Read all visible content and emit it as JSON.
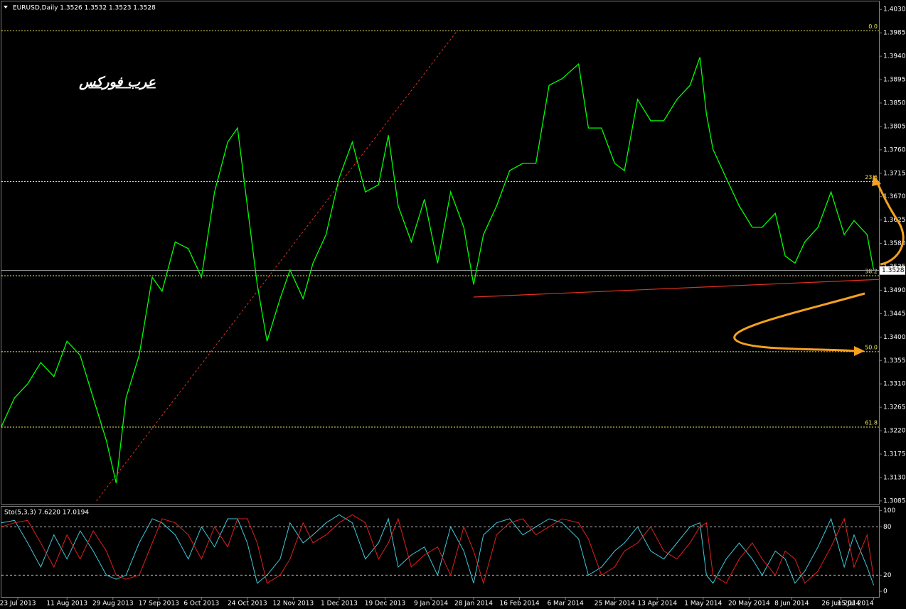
{
  "chart_data": [
    {
      "type": "line",
      "title": "EURUSD,Daily  1.3526 1.3532 1.3523 1.3528",
      "annotation": "عرب فوركس",
      "color": "#00ff00",
      "x": [
        0,
        4,
        8,
        12,
        16,
        20,
        24,
        28,
        32,
        35,
        38,
        42,
        46,
        49,
        53,
        57,
        61,
        65,
        69,
        72,
        75,
        78,
        81,
        85,
        88,
        92,
        95,
        99,
        103,
        107,
        111,
        115,
        118,
        121,
        125,
        129,
        133,
        137,
        141,
        144,
        147,
        151,
        155,
        159,
        163,
        167,
        171,
        176,
        179,
        183,
        187,
        190,
        194,
        198,
        202,
        206,
        210,
        213,
        215,
        217,
        221,
        225,
        229,
        232,
        236,
        239,
        242,
        245,
        249,
        253,
        257,
        260,
        264,
        266
      ],
      "values": [
        1.3228,
        1.3283,
        1.331,
        1.3351,
        1.3324,
        1.3392,
        1.3365,
        1.3283,
        1.3201,
        1.3119,
        1.3283,
        1.3365,
        1.3515,
        1.3488,
        1.3583,
        1.357,
        1.3515,
        1.3679,
        1.3775,
        1.3802,
        1.3652,
        1.3501,
        1.3392,
        1.3474,
        1.3529,
        1.3474,
        1.3542,
        1.3597,
        1.3706,
        1.3775,
        1.3679,
        1.3693,
        1.3788,
        1.3652,
        1.3583,
        1.3665,
        1.3542,
        1.3679,
        1.3611,
        1.3501,
        1.3597,
        1.3652,
        1.372,
        1.3734,
        1.3734,
        1.3884,
        1.3897,
        1.3925,
        1.3802,
        1.3802,
        1.3734,
        1.372,
        1.3857,
        1.3816,
        1.3816,
        1.3857,
        1.3884,
        1.3938,
        1.3829,
        1.3761,
        1.3706,
        1.3652,
        1.3611,
        1.3611,
        1.3638,
        1.3556,
        1.3542,
        1.3583,
        1.3611,
        1.3679,
        1.3597,
        1.3624,
        1.3597,
        1.3528
      ],
      "xlim": [
        0,
        270
      ],
      "ylim": [
        1.3078,
        1.4044
      ],
      "yticks": [
        {
          "value": 1.403,
          "label": "1.4030"
        },
        {
          "value": 1.3985,
          "label": "1.3985"
        },
        {
          "value": 1.394,
          "label": "1.3940"
        },
        {
          "value": 1.3895,
          "label": "1.3895"
        },
        {
          "value": 1.385,
          "label": "1.3850"
        },
        {
          "value": 1.3805,
          "label": "1.3805"
        },
        {
          "value": 1.376,
          "label": "1.3760"
        },
        {
          "value": 1.3715,
          "label": "1.3715"
        },
        {
          "value": 1.367,
          "label": "1.3670"
        },
        {
          "value": 1.3625,
          "label": "1.3625"
        },
        {
          "value": 1.358,
          "label": "1.3580"
        },
        {
          "value": 1.3535,
          "label": "1.3535"
        },
        {
          "value": 1.349,
          "label": "1.3490"
        },
        {
          "value": 1.3445,
          "label": "1.3445"
        },
        {
          "value": 1.34,
          "label": "1.3400"
        },
        {
          "value": 1.3355,
          "label": "1.3355"
        },
        {
          "value": 1.331,
          "label": "1.3310"
        },
        {
          "value": 1.3265,
          "label": "1.3265"
        },
        {
          "value": 1.322,
          "label": "1.3220"
        },
        {
          "value": 1.3175,
          "label": "1.3175"
        },
        {
          "value": 1.313,
          "label": "1.3130"
        },
        {
          "value": 1.3085,
          "label": "1.3085"
        }
      ],
      "last_price": {
        "value": 1.3528,
        "label": "1.3528"
      },
      "fibo": {
        "color": "#e6e65c",
        "labels": [
          "0.0",
          "23.6",
          "38.2",
          "50.0",
          "61.8"
        ],
        "prices": [
          1.3989,
          1.3699,
          1.3518,
          1.3372,
          1.3227
        ]
      },
      "trendlines": [
        {
          "style": "dotted",
          "color": "#e03020",
          "x": [
            29,
            139
          ],
          "y": [
            1.3085,
            1.3989
          ]
        },
        {
          "style": "solid",
          "color": "#e03020",
          "x": [
            144,
            268
          ],
          "y": [
            1.3477,
            1.3511
          ]
        }
      ]
    },
    {
      "type": "line",
      "title": "Sto(5,3,3) 7.6220 17.0194",
      "x": [
        0,
        4,
        8,
        12,
        16,
        20,
        24,
        28,
        32,
        35,
        38,
        42,
        46,
        49,
        53,
        57,
        61,
        65,
        69,
        72,
        75,
        78,
        81,
        85,
        88,
        92,
        95,
        99,
        103,
        107,
        111,
        115,
        118,
        121,
        125,
        129,
        133,
        137,
        141,
        144,
        147,
        151,
        155,
        159,
        163,
        167,
        171,
        176,
        179,
        183,
        187,
        190,
        194,
        198,
        202,
        206,
        210,
        213,
        215,
        217,
        221,
        225,
        229,
        232,
        236,
        239,
        242,
        245,
        249,
        253,
        257,
        260,
        264,
        266
      ],
      "series": [
        {
          "color": "#40c8d8",
          "values": [
            85,
            88,
            60,
            30,
            70,
            40,
            75,
            50,
            20,
            15,
            20,
            60,
            90,
            85,
            70,
            40,
            80,
            55,
            90,
            90,
            60,
            10,
            20,
            40,
            85,
            60,
            70,
            85,
            95,
            85,
            40,
            60,
            90,
            30,
            45,
            55,
            20,
            80,
            50,
            10,
            70,
            85,
            90,
            70,
            80,
            90,
            85,
            65,
            20,
            30,
            50,
            60,
            80,
            50,
            40,
            60,
            80,
            85,
            20,
            10,
            40,
            60,
            40,
            20,
            50,
            40,
            10,
            25,
            55,
            90,
            30,
            70,
            30,
            7.622
          ]
        },
        {
          "color": "#e02020",
          "values": [
            80,
            85,
            88,
            60,
            30,
            70,
            40,
            75,
            50,
            20,
            15,
            20,
            60,
            90,
            85,
            70,
            40,
            80,
            55,
            90,
            90,
            60,
            10,
            20,
            40,
            85,
            60,
            70,
            85,
            95,
            85,
            40,
            60,
            90,
            30,
            45,
            55,
            20,
            80,
            50,
            10,
            70,
            85,
            90,
            70,
            80,
            90,
            85,
            65,
            20,
            30,
            50,
            60,
            80,
            50,
            40,
            60,
            80,
            85,
            20,
            10,
            40,
            60,
            40,
            20,
            50,
            40,
            10,
            25,
            55,
            90,
            30,
            70,
            17.0194
          ]
        }
      ],
      "xlim": [
        0,
        270
      ],
      "ylim": [
        -7,
        105
      ],
      "yticks": [
        100,
        80,
        20,
        0
      ],
      "levels": [
        80,
        20
      ],
      "xticks": [
        {
          "value": 5,
          "label": "23 Jul 2013"
        },
        {
          "value": 20,
          "label": "11 Aug 2013"
        },
        {
          "value": 34,
          "label": "29 Aug 2013"
        },
        {
          "value": 48,
          "label": "17 Sep 2013"
        },
        {
          "value": 61,
          "label": "6 Oct 2013"
        },
        {
          "value": 75,
          "label": "24 Oct 2013"
        },
        {
          "value": 89,
          "label": "12 Nov 2013"
        },
        {
          "value": 103,
          "label": "1 Dec 2013"
        },
        {
          "value": 117,
          "label": "19 Dec 2013"
        },
        {
          "value": 131,
          "label": "9 Jan 2014"
        },
        {
          "value": 144,
          "label": "28 Jan 2014"
        },
        {
          "value": 158,
          "label": "16 Feb 2014"
        },
        {
          "value": 172,
          "label": "6 Mar 2014"
        },
        {
          "value": 187,
          "label": "25 Mar 2014"
        },
        {
          "value": 200,
          "label": "13 Apr 2014"
        },
        {
          "value": 214,
          "label": "1 May 2014"
        },
        {
          "value": 228,
          "label": "20 May 2014"
        },
        {
          "value": 241,
          "label": "8 Jun 2014"
        },
        {
          "value": 256,
          "label": "26 Jun 2014"
        },
        {
          "value": 266,
          "label": "15 Jul 2014"
        }
      ]
    }
  ]
}
